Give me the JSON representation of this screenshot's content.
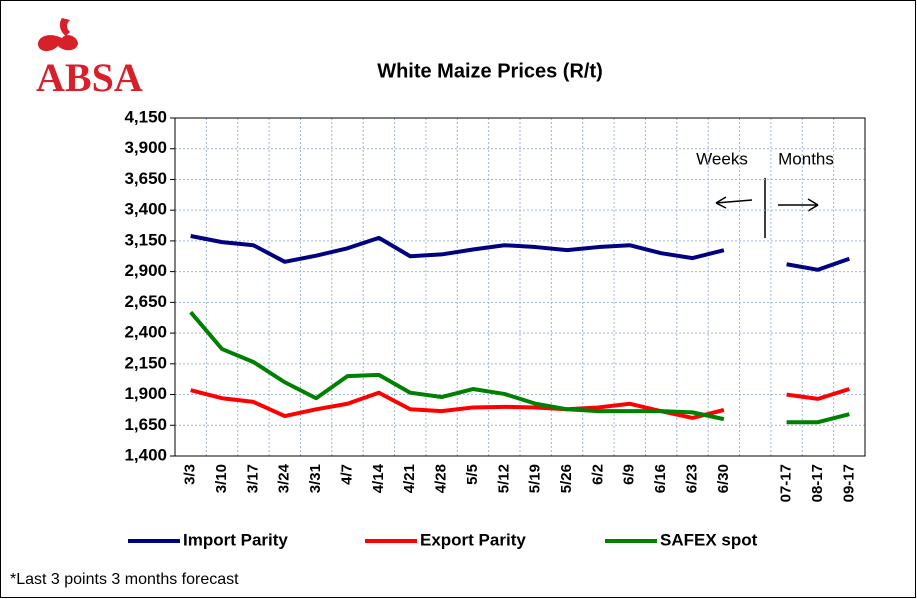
{
  "chart_data": {
    "type": "line",
    "title": "White Maize Prices (R/t)",
    "logo_text": "ABSA",
    "categories": [
      "3/3",
      "3/10",
      "3/17",
      "3/24",
      "3/31",
      "4/7",
      "4/14",
      "4/21",
      "4/28",
      "5/5",
      "5/12",
      "5/19",
      "5/26",
      "6/2",
      "6/9",
      "6/16",
      "6/23",
      "6/30",
      null,
      "07-17",
      "08-17",
      "09-17"
    ],
    "series": [
      {
        "name": "Import Parity",
        "color": "#000080",
        "values": [
          3190,
          3140,
          3115,
          2980,
          3030,
          3090,
          3175,
          3025,
          3040,
          3080,
          3115,
          3100,
          3075,
          3100,
          3115,
          3050,
          3010,
          3075,
          null,
          2960,
          2915,
          3005
        ]
      },
      {
        "name": "Export Parity",
        "color": "#ff0000",
        "values": [
          1935,
          1870,
          1840,
          1725,
          1780,
          1825,
          1915,
          1780,
          1765,
          1795,
          1800,
          1795,
          1780,
          1795,
          1825,
          1765,
          1710,
          1775,
          null,
          1900,
          1865,
          1945
        ]
      },
      {
        "name": "SAFEX spot",
        "color": "#008000",
        "values": [
          2570,
          2270,
          2165,
          2000,
          1870,
          2050,
          2060,
          1915,
          1880,
          1945,
          1905,
          1825,
          1780,
          1765,
          1765,
          1765,
          1755,
          1700,
          null,
          1675,
          1675,
          1740
        ]
      }
    ],
    "ylim": [
      1400,
      4150
    ],
    "yticks": [
      {
        "value": 1400,
        "label": "1,400"
      },
      {
        "value": 1650,
        "label": "1,650"
      },
      {
        "value": 1900,
        "label": "1,900"
      },
      {
        "value": 2150,
        "label": "2,150"
      },
      {
        "value": 2400,
        "label": "2,400"
      },
      {
        "value": 2650,
        "label": "2,650"
      },
      {
        "value": 2900,
        "label": "2,900"
      },
      {
        "value": 3150,
        "label": "3,150"
      },
      {
        "value": 3400,
        "label": "3,400"
      },
      {
        "value": 3650,
        "label": "3,650"
      },
      {
        "value": 3900,
        "label": "3,900"
      },
      {
        "value": 4150,
        "label": "4,150"
      }
    ],
    "grid": true,
    "legend": "bottom",
    "annotations": [
      "Weeks",
      "Months"
    ],
    "footnote": "*Last 3 points 3 months forecast"
  }
}
